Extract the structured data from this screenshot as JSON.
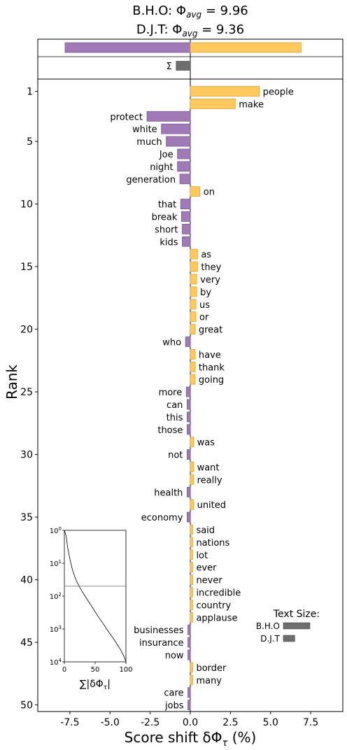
{
  "chart_data": {
    "type": "bar",
    "title_line1": "B.H.O: Φ",
    "title_line1_sub": "avg",
    "title_line1_value": " = 9.96",
    "title_line2": "D.J.T: Φ",
    "title_line2_sub": "avg",
    "title_line2_value": " = 9.36",
    "xlabel": "Score shift δΦ",
    "xlabel_sub": "τ",
    "xlabel_suffix": " (%)",
    "ylabel": "Rank",
    "xlim": [
      -9.5,
      9.5
    ],
    "x_ticks": [
      -7.5,
      -5.0,
      -2.5,
      0.0,
      2.5,
      5.0,
      7.5
    ],
    "x_tick_labels": [
      "-7.5",
      "-5.0",
      "-2.5",
      "0.0",
      "2.5",
      "5.0",
      "7.5"
    ],
    "y_ticks": [
      1,
      5,
      10,
      15,
      20,
      25,
      30,
      35,
      40,
      45,
      50
    ],
    "summary": {
      "left": -7.8,
      "right": 6.9
    },
    "sigma": {
      "label": "Σ",
      "value": -0.9
    },
    "colors": {
      "left": "#a07ab6",
      "left_edge": "#7e5a96",
      "right": "#ffc95d",
      "right_edge": "#e0a33c",
      "sigma": "#6e6e6e"
    },
    "words": [
      {
        "rank": 1,
        "word": "people",
        "value": 4.3
      },
      {
        "rank": 2,
        "word": "make",
        "value": 2.8
      },
      {
        "rank": 3,
        "word": "protect",
        "value": -2.7
      },
      {
        "rank": 4,
        "word": "white",
        "value": -1.8
      },
      {
        "rank": 5,
        "word": "much",
        "value": -1.5
      },
      {
        "rank": 6,
        "word": "Joe",
        "value": -0.8
      },
      {
        "rank": 7,
        "word": "night",
        "value": -0.8
      },
      {
        "rank": 8,
        "word": "generation",
        "value": -0.65
      },
      {
        "rank": 9,
        "word": "on",
        "value": 0.6
      },
      {
        "rank": 10,
        "word": "that",
        "value": -0.6
      },
      {
        "rank": 11,
        "word": "break",
        "value": -0.55
      },
      {
        "rank": 12,
        "word": "short",
        "value": -0.5
      },
      {
        "rank": 13,
        "word": "kids",
        "value": -0.5
      },
      {
        "rank": 14,
        "word": "as",
        "value": 0.45
      },
      {
        "rank": 15,
        "word": "they",
        "value": 0.45
      },
      {
        "rank": 16,
        "word": "very",
        "value": 0.4
      },
      {
        "rank": 17,
        "word": "by",
        "value": 0.4
      },
      {
        "rank": 18,
        "word": "us",
        "value": 0.35
      },
      {
        "rank": 19,
        "word": "or",
        "value": 0.35
      },
      {
        "rank": 20,
        "word": "great",
        "value": 0.3
      },
      {
        "rank": 21,
        "word": "who",
        "value": -0.3
      },
      {
        "rank": 22,
        "word": "have",
        "value": 0.3
      },
      {
        "rank": 23,
        "word": "thank",
        "value": 0.3
      },
      {
        "rank": 24,
        "word": "going",
        "value": 0.3
      },
      {
        "rank": 25,
        "word": "more",
        "value": -0.25
      },
      {
        "rank": 26,
        "word": "can",
        "value": -0.2
      },
      {
        "rank": 27,
        "word": "this",
        "value": -0.2
      },
      {
        "rank": 28,
        "word": "those",
        "value": -0.2
      },
      {
        "rank": 29,
        "word": "was",
        "value": 0.2
      },
      {
        "rank": 30,
        "word": "not",
        "value": -0.2
      },
      {
        "rank": 31,
        "word": "want",
        "value": 0.2
      },
      {
        "rank": 32,
        "word": "really",
        "value": 0.2
      },
      {
        "rank": 33,
        "word": "health",
        "value": -0.2
      },
      {
        "rank": 34,
        "word": "united",
        "value": 0.2
      },
      {
        "rank": 35,
        "word": "economy",
        "value": -0.2
      },
      {
        "rank": 36,
        "word": "said",
        "value": 0.15
      },
      {
        "rank": 37,
        "word": "nations",
        "value": 0.15
      },
      {
        "rank": 38,
        "word": "lot",
        "value": 0.15
      },
      {
        "rank": 39,
        "word": "ever",
        "value": 0.15
      },
      {
        "rank": 40,
        "word": "never",
        "value": 0.15
      },
      {
        "rank": 41,
        "word": "incredible",
        "value": 0.15
      },
      {
        "rank": 42,
        "word": "country",
        "value": 0.15
      },
      {
        "rank": 43,
        "word": "applause",
        "value": 0.15
      },
      {
        "rank": 44,
        "word": "businesses",
        "value": -0.15
      },
      {
        "rank": 45,
        "word": "insurance",
        "value": -0.15
      },
      {
        "rank": 46,
        "word": "now",
        "value": -0.15
      },
      {
        "rank": 47,
        "word": "border",
        "value": 0.15
      },
      {
        "rank": 48,
        "word": "many",
        "value": 0.15
      },
      {
        "rank": 49,
        "word": "care",
        "value": -0.15
      },
      {
        "rank": 50,
        "word": "jobs",
        "value": -0.15
      }
    ],
    "inset": {
      "xlabel": "∑|δΦ",
      "xlabel_sub": "τ",
      "xlabel_suffix": "|",
      "x_ticks": [
        0,
        50,
        100
      ],
      "y_tick_labels": [
        {
          "base": "10",
          "exp": "0"
        },
        {
          "base": "10",
          "exp": "1"
        },
        {
          "base": "10",
          "exp": "2"
        },
        {
          "base": "10",
          "exp": "3"
        },
        {
          "base": "10",
          "exp": "4"
        }
      ],
      "hline_rank": 50,
      "curve": [
        [
          0,
          1
        ],
        [
          3,
          1.5
        ],
        [
          5,
          3
        ],
        [
          8,
          6
        ],
        [
          11,
          11
        ],
        [
          14,
          18
        ],
        [
          17,
          26
        ],
        [
          20,
          36
        ],
        [
          24,
          50
        ],
        [
          28,
          68
        ],
        [
          33,
          95
        ],
        [
          38,
          135
        ],
        [
          44,
          200
        ],
        [
          50,
          300
        ],
        [
          56,
          450
        ],
        [
          62,
          650
        ],
        [
          68,
          950
        ],
        [
          74,
          1400
        ],
        [
          80,
          2000
        ],
        [
          86,
          3000
        ],
        [
          92,
          4500
        ],
        [
          97,
          7000
        ],
        [
          100,
          10000
        ]
      ]
    },
    "text_size": {
      "title": "Text Size:",
      "items": [
        {
          "label": "B.H.O",
          "value": 1.0
        },
        {
          "label": "D.J.T",
          "value": 0.43
        }
      ]
    }
  }
}
